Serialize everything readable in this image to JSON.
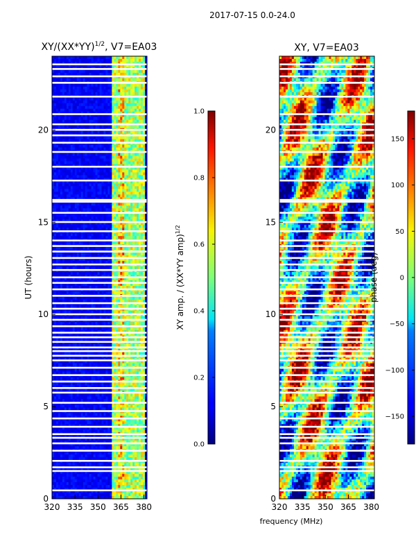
{
  "figure_title": "2017-07-15 0.0-24.0",
  "colors": {
    "background": "#ffffff",
    "axes": "#000000",
    "flag_gap": "#ffffff",
    "jet_low": "#00007f",
    "jet_high": "#7f0000"
  },
  "chart_data": [
    {
      "type": "heatmap",
      "panel": "left",
      "title_main": "XY/(XX*YY)",
      "title_sup": "1/2",
      "title_rest": ", V7=EA03",
      "xlabel": "",
      "ylabel": "UT (hours)",
      "xlim": [
        320,
        382
      ],
      "ylim": [
        0,
        24
      ],
      "xticks": [
        320,
        335,
        350,
        365,
        380
      ],
      "yticks": [
        0,
        5,
        10,
        15,
        20
      ],
      "colorscale": "jet",
      "colorbar": {
        "label": "XY amp. / (XX*YY amp)",
        "label_sup": "1/2",
        "range": [
          0.0,
          1.0
        ],
        "ticks": [
          "0.0",
          "0.2",
          "0.4",
          "0.6",
          "0.8",
          "1.0"
        ]
      },
      "description_bands_mhz": [
        [
          359,
          380
        ]
      ]
    },
    {
      "type": "heatmap",
      "panel": "right",
      "title_main": "XY, V7=EA03",
      "title_sup": "",
      "title_rest": "",
      "xlabel": "frequency (MHz)",
      "ylabel": "",
      "xlim": [
        320,
        382
      ],
      "ylim": [
        0,
        24
      ],
      "xticks": [
        320,
        335,
        350,
        365,
        380
      ],
      "yticks": [
        0,
        5,
        10,
        15,
        20
      ],
      "colorscale": "jet",
      "colorbar": {
        "label": "phase (deg)",
        "label_sup": "",
        "range": [
          -180,
          180
        ],
        "ticks": [
          "−150",
          "−100",
          "−50",
          "0",
          "50",
          "100",
          "150"
        ]
      }
    }
  ],
  "flagged_hours": [
    0.45,
    1.5,
    1.7,
    2.05,
    2.6,
    3.0,
    3.3,
    3.5,
    3.9,
    4.35,
    4.75,
    5.2,
    5.75,
    6.0,
    6.35,
    6.7,
    7.1,
    7.5,
    7.75,
    8.0,
    8.2,
    8.5,
    8.75,
    9.0,
    9.35,
    9.7,
    10.0,
    10.3,
    10.6,
    11.0,
    11.35,
    11.7,
    12.0,
    12.4,
    12.7,
    13.05,
    13.4,
    13.7,
    14.0,
    14.5,
    15.0,
    15.5,
    16.1,
    16.2,
    17.25,
    18.0,
    18.8,
    19.3,
    19.7,
    20.0,
    20.3,
    20.85,
    21.8,
    22.55,
    22.9,
    23.3,
    23.55
  ]
}
